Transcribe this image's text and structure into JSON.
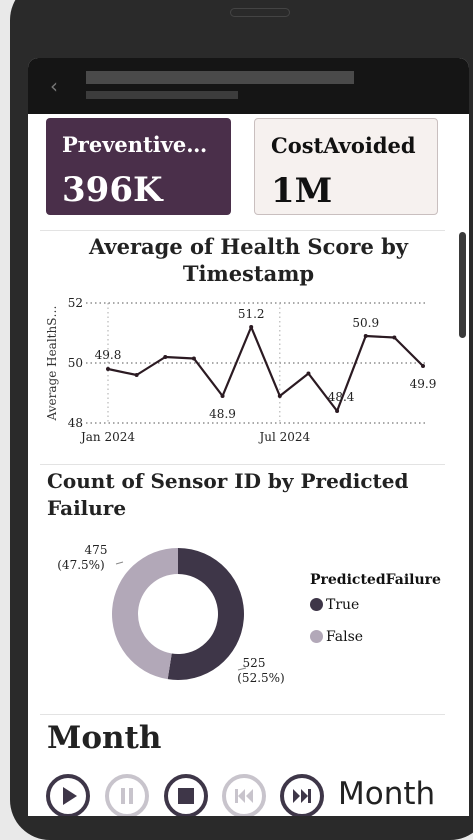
{
  "kpi_cards": [
    {
      "label": "Preventive…",
      "value": "396K"
    },
    {
      "label": "CostAvoided",
      "value": "1M"
    }
  ],
  "chart_data": [
    {
      "type": "line",
      "title": "Average of Health Score by Timestamp",
      "ylabel": "Average HealthS…",
      "ylim": [
        48,
        52
      ],
      "yticks": [
        "48",
        "50",
        "52"
      ],
      "xticks": [
        "Jan 2024",
        "Jul 2024"
      ],
      "x": [
        "2024-01",
        "2024-02",
        "2024-03",
        "2024-04",
        "2024-05",
        "2024-06",
        "2024-07",
        "2024-08",
        "2024-09",
        "2024-10",
        "2024-11",
        "2024-12"
      ],
      "values": [
        49.8,
        49.6,
        50.2,
        50.15,
        48.9,
        51.2,
        48.9,
        49.65,
        48.4,
        50.9,
        50.85,
        49.9
      ],
      "data_labels": [
        {
          "index": 0,
          "text": "49.8"
        },
        {
          "index": 4,
          "text": "48.9"
        },
        {
          "index": 5,
          "text": "51.2"
        },
        {
          "index": 8,
          "text": "48.4"
        },
        {
          "index": 9,
          "text": "50.9"
        },
        {
          "index": 11,
          "text": "49.9"
        }
      ],
      "line_color": "#2b1a22",
      "grid": true
    },
    {
      "type": "pie",
      "donut": true,
      "title": "Count of Sensor ID by Predicted Failure",
      "legend_title": "PredictedFailure",
      "slices": [
        {
          "name": "True",
          "value": 525,
          "label_value": "525",
          "label_pct": "(52.5%)",
          "color": "#3e3648"
        },
        {
          "name": "False",
          "value": 475,
          "label_value": "475",
          "label_pct": "(47.5%)",
          "color": "#b2a8b8"
        }
      ]
    }
  ],
  "slicer": {
    "title": "Month",
    "current_label": "Month",
    "buttons": [
      {
        "name": "play-icon",
        "enabled": true
      },
      {
        "name": "pause-icon",
        "enabled": false
      },
      {
        "name": "stop-icon",
        "enabled": true
      },
      {
        "name": "skip-back-icon",
        "enabled": false
      },
      {
        "name": "skip-forward-icon",
        "enabled": true
      }
    ]
  }
}
